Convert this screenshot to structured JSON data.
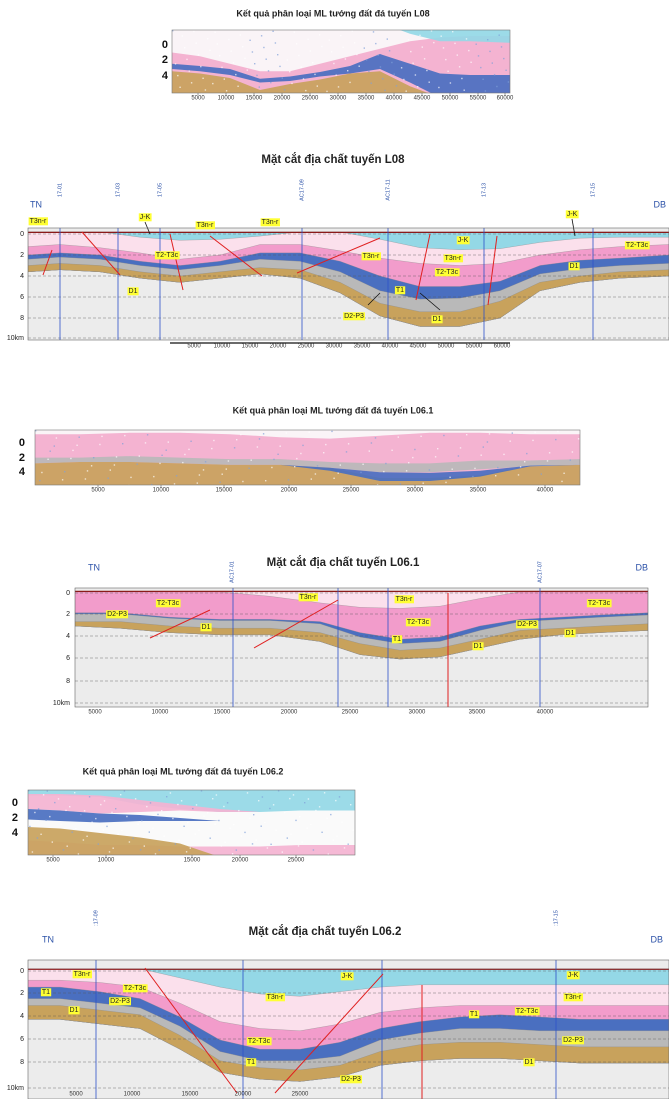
{
  "panels": [
    {
      "title": "Kết quả phân loại ML tướng đất đá tuyến L08",
      "depth_labels": [
        "0",
        "2",
        "4"
      ],
      "distance_labels": [
        "5000",
        "10000",
        "15000",
        "20000",
        "25000",
        "30000",
        "35000",
        "40000",
        "45000",
        "50000",
        "55000",
        "60000"
      ]
    },
    {
      "title": "Mặt cắt địa chất tuyến L08",
      "left_end": "TN",
      "right_end": "DB",
      "depth_labels": [
        "0",
        "2",
        "4",
        "6",
        "8",
        "10km"
      ],
      "distance_labels": [
        "5000",
        "10000",
        "15000",
        "20000",
        "25000",
        "30000",
        "35000",
        "40000",
        "45000",
        "50000",
        "55000",
        "60000"
      ],
      "wells": [
        "17-01",
        "17-03",
        "17-05",
        "AC17-09",
        "AC17-11",
        "17-13",
        "17-15"
      ],
      "units": [
        "T3n-r",
        "J-K",
        "T3n-r",
        "T3n-r",
        "T2-T3c",
        "D1",
        "J-K",
        "J-K",
        "T2-T3c",
        "T3n-r",
        "T3n-r",
        "T2-T3c",
        "D1",
        "T1",
        "D2-P3",
        "D1"
      ]
    },
    {
      "title": "Kết quả phân loại ML tướng đất đá tuyến L06.1",
      "depth_labels": [
        "0",
        "2",
        "4"
      ],
      "distance_labels": [
        "5000",
        "10000",
        "15000",
        "20000",
        "25000",
        "30000",
        "35000",
        "40000"
      ]
    },
    {
      "title": "Mặt cắt địa chất tuyến L06.1",
      "left_end": "TN",
      "right_end": "DB",
      "depth_labels": [
        "0",
        "2",
        "4",
        "6",
        "8",
        "10km"
      ],
      "distance_labels": [
        "5000",
        "10000",
        "15000",
        "20000",
        "25000",
        "30000",
        "35000",
        "40000"
      ],
      "wells": [
        "AC17-01",
        "AC17-07"
      ],
      "units": [
        "T2-T3c",
        "T3n-r",
        "T3n-r",
        "T2-T3c",
        "D2-P3",
        "D1",
        "T2-T3c",
        "T1",
        "D2-P3",
        "D1",
        "D1"
      ]
    },
    {
      "title": "Kết quả phân loại ML tướng đất đá tuyến L06.2",
      "depth_labels": [
        "0",
        "2",
        "4"
      ],
      "distance_labels": [
        "5000",
        "10000",
        "15000",
        "20000",
        "25000"
      ]
    },
    {
      "title": "Mặt cắt địa chất tuyến L06.2",
      "left_end": "TN",
      "right_end": "DB",
      "depth_labels": [
        "0",
        "2",
        "4",
        "6",
        "8",
        "10km"
      ],
      "distance_labels": [
        "5000",
        "10000",
        "15000",
        "20000",
        "25000"
      ],
      "wells": [
        ":17-09",
        ":17-15"
      ],
      "units": [
        "T3n-r",
        "T2-T3c",
        "T1",
        "D2-P3",
        "D1",
        "J-K",
        "T3n-r",
        "T2-T3c",
        "T1",
        "D2-P3",
        "J-K",
        "T3n-r",
        "T1",
        "T2-T3c",
        "D2-P3",
        "D1"
      ]
    }
  ]
}
